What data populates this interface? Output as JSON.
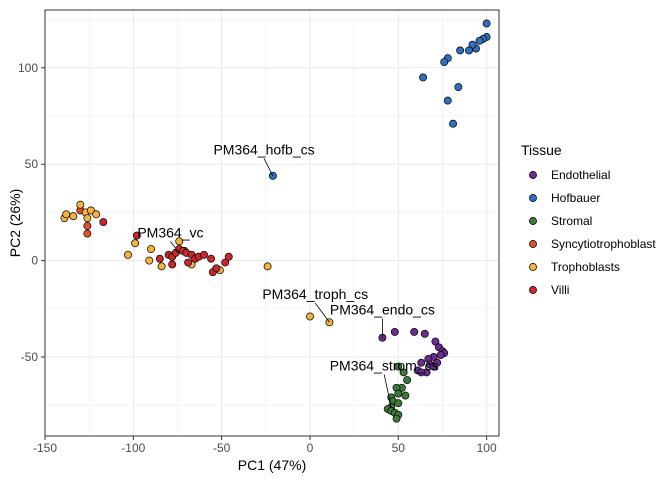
{
  "chart_data": {
    "type": "scatter",
    "xlabel": "PC1 (47%)",
    "ylabel": "PC2 (26%)",
    "xlim": [
      -150,
      107
    ],
    "ylim": [
      -91,
      130
    ],
    "xticks": [
      -150,
      -100,
      -50,
      0,
      50,
      100
    ],
    "yticks": [
      -50,
      0,
      50,
      100
    ],
    "xtick_labels": [
      "-150",
      "-100",
      "-50",
      "0",
      "50",
      "100"
    ],
    "ytick_labels": [
      "-50",
      "0",
      "50",
      "100"
    ],
    "grid": true,
    "legend": {
      "title": "Tissue",
      "position": "right"
    },
    "series": [
      {
        "name": "Endothelial",
        "color": "#6a2c91",
        "points": [
          [
            41,
            -40
          ],
          [
            48,
            -37
          ],
          [
            59,
            -37
          ],
          [
            65,
            -38
          ],
          [
            71,
            -42
          ],
          [
            73,
            -45
          ],
          [
            75,
            -47
          ],
          [
            76,
            -48
          ],
          [
            74,
            -49
          ],
          [
            70,
            -50
          ],
          [
            67,
            -51
          ],
          [
            63,
            -53
          ],
          [
            68,
            -54
          ],
          [
            70,
            -55
          ],
          [
            72,
            -53
          ],
          [
            61,
            -57
          ],
          [
            66,
            -58
          ],
          [
            63,
            -58
          ]
        ]
      },
      {
        "name": "Hofbauer",
        "color": "#2f6fc0",
        "points": [
          [
            100,
            123
          ],
          [
            100,
            116
          ],
          [
            98,
            115
          ],
          [
            96,
            114
          ],
          [
            94,
            110
          ],
          [
            92,
            112
          ],
          [
            90,
            109
          ],
          [
            85,
            109
          ],
          [
            78,
            105
          ],
          [
            76,
            103
          ],
          [
            64,
            95
          ],
          [
            84,
            90
          ],
          [
            78,
            83
          ],
          [
            81,
            71
          ],
          [
            -21,
            44
          ]
        ]
      },
      {
        "name": "Stromal",
        "color": "#3d7a37",
        "points": [
          [
            50,
            -55
          ],
          [
            53,
            -58
          ],
          [
            55,
            -62
          ],
          [
            52,
            -66
          ],
          [
            49,
            -66
          ],
          [
            50,
            -69
          ],
          [
            46,
            -71
          ],
          [
            54,
            -70
          ],
          [
            47,
            -73
          ],
          [
            50,
            -74
          ],
          [
            46,
            -76
          ],
          [
            44,
            -77
          ],
          [
            46,
            -78
          ],
          [
            48,
            -79
          ],
          [
            50,
            -80
          ],
          [
            49,
            -82
          ]
        ]
      },
      {
        "name": "Syncytiotrophoblast",
        "color": "#e0502a",
        "points": [
          [
            -130,
            26
          ],
          [
            -126,
            18
          ],
          [
            -126,
            14
          ]
        ]
      },
      {
        "name": "Trophoblasts",
        "color": "#f3b33d",
        "points": [
          [
            -139,
            22
          ],
          [
            -138,
            24
          ],
          [
            -134,
            23
          ],
          [
            -130,
            29
          ],
          [
            -127,
            25
          ],
          [
            -126,
            22
          ],
          [
            -124,
            26
          ],
          [
            -121,
            24
          ],
          [
            -103,
            3
          ],
          [
            -99,
            9
          ],
          [
            -90,
            6
          ],
          [
            -91,
            0
          ],
          [
            -84,
            -3
          ],
          [
            -74,
            10
          ],
          [
            -71,
            5
          ],
          [
            -67,
            -2
          ],
          [
            -51,
            -5
          ],
          [
            -24,
            -3
          ],
          [
            0,
            -29
          ],
          [
            11,
            -32
          ]
        ]
      },
      {
        "name": "Villi",
        "color": "#c8282d",
        "points": [
          [
            -117,
            20
          ],
          [
            -98,
            13
          ],
          [
            -85,
            1
          ],
          [
            -80,
            3
          ],
          [
            -78,
            2
          ],
          [
            -76,
            4
          ],
          [
            -74,
            6
          ],
          [
            -72,
            5
          ],
          [
            -70,
            4
          ],
          [
            -67,
            3
          ],
          [
            -65,
            1
          ],
          [
            -63,
            2
          ],
          [
            -60,
            3
          ],
          [
            -56,
            1
          ],
          [
            -55,
            -6
          ],
          [
            -53,
            -4
          ],
          [
            -48,
            -1
          ],
          [
            -46,
            2
          ],
          [
            -69,
            -1
          ],
          [
            -78,
            -2
          ]
        ]
      }
    ],
    "annotations": [
      {
        "text": "PM364_hofb_cs",
        "x": -21,
        "y": 44,
        "lx": -26,
        "ly": 55
      },
      {
        "text": "PM364_vc",
        "x": -74,
        "y": 4,
        "lx": -79,
        "ly": 12
      },
      {
        "text": "PM364_troph_cs",
        "x": 11,
        "y": -32,
        "lx": 3,
        "ly": -20
      },
      {
        "text": "PM364_endo_cs",
        "x": 41,
        "y": -40,
        "lx": 41,
        "ly": -28
      },
      {
        "text": "PM364_strom_cs",
        "x": 46,
        "y": -76,
        "lx": 42,
        "ly": -57
      }
    ]
  }
}
